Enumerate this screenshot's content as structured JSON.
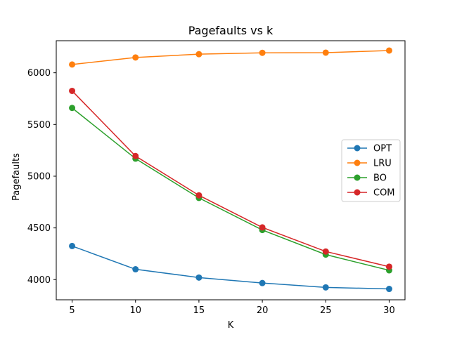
{
  "chart_data": {
    "type": "line",
    "title": "Pagefaults vs k",
    "xlabel": "K",
    "ylabel": "Pagefaults",
    "x": [
      5,
      10,
      15,
      20,
      25,
      30
    ],
    "xticks": [
      5,
      10,
      15,
      20,
      25,
      30
    ],
    "yticks": [
      4000,
      4500,
      5000,
      5500,
      6000
    ],
    "xlim": [
      3.75,
      31.25
    ],
    "ylim": [
      3805,
      6310
    ],
    "grid": false,
    "legend_position": "center-right",
    "series": [
      {
        "name": "OPT",
        "color": "#1f77b4",
        "values": [
          4325,
          4100,
          4020,
          3967,
          3925,
          3910
        ]
      },
      {
        "name": "LRU",
        "color": "#ff7f0e",
        "values": [
          6080,
          6148,
          6180,
          6193,
          6195,
          6215
        ]
      },
      {
        "name": "BO",
        "color": "#2ca02c",
        "values": [
          5660,
          5170,
          4790,
          4480,
          4242,
          4090
        ]
      },
      {
        "name": "COM",
        "color": "#d62728",
        "values": [
          5825,
          5195,
          4815,
          4505,
          4272,
          4125
        ]
      }
    ]
  }
}
